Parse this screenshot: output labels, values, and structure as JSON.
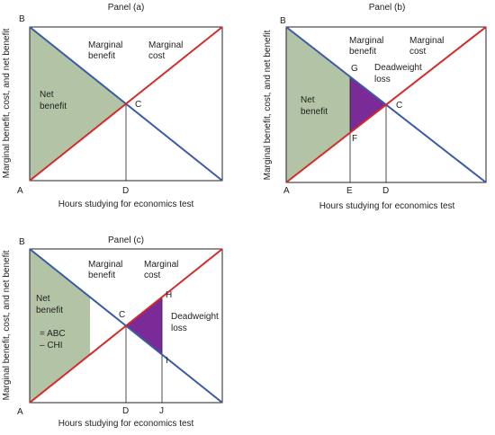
{
  "panels": [
    {
      "title": "Panel (a)",
      "y_axis_label": "Marginal benefit, cost, and net benefit",
      "x_axis_label": "Hours studying for economics test",
      "points": [
        "B",
        "A",
        "C",
        "D"
      ],
      "labels": {
        "marginal_benefit": [
          "Marginal",
          "benefit"
        ],
        "marginal_cost": [
          "Marginal",
          "cost"
        ],
        "net_benefit": [
          "Net",
          "benefit"
        ]
      }
    },
    {
      "title": "Panel (b)",
      "y_axis_label": "Marginal benefit, cost, and net benefit",
      "x_axis_label": "Hours studying for economics test",
      "points": [
        "B",
        "A",
        "E",
        "D",
        "G",
        "F",
        "C"
      ],
      "labels": {
        "marginal_benefit": [
          "Marginal",
          "benefit"
        ],
        "marginal_cost": [
          "Marginal",
          "cost"
        ],
        "deadweight_loss": [
          "Deadweight",
          "loss"
        ],
        "net_benefit": [
          "Net",
          "benefit"
        ]
      }
    },
    {
      "title": "Panel (c)",
      "y_axis_label": "Marginal benefit, cost, and net benefit",
      "x_axis_label": "Hours studying for economics test",
      "points": [
        "B",
        "A",
        "D",
        "J",
        "C",
        "H",
        "I"
      ],
      "labels": {
        "marginal_benefit": [
          "Marginal",
          "benefit"
        ],
        "marginal_cost": [
          "Marginal",
          "cost"
        ],
        "deadweight_loss": [
          "Deadweight",
          "loss"
        ],
        "net_benefit": [
          "Net",
          "benefit",
          "= ABC",
          "– CHI"
        ]
      }
    }
  ]
}
